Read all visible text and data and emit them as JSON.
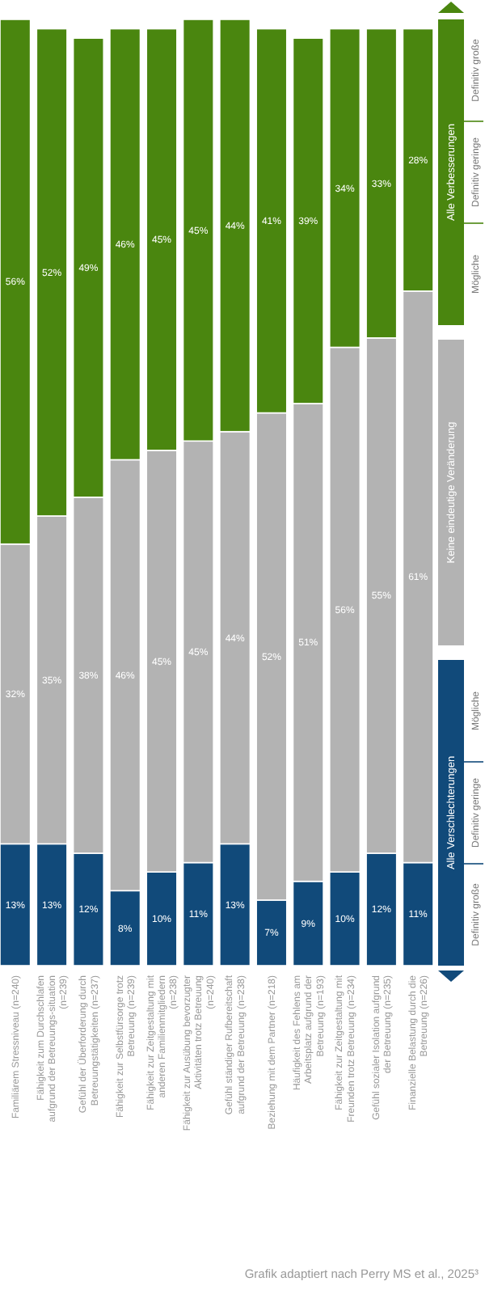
{
  "chart_data": {
    "type": "bar",
    "stacked": true,
    "legend": "right",
    "categories": [
      "Familiärem Stressniveau (n=240)",
      "Fähigkeit zum Durchschlafen aufgrund der Betreuungs-situation (n=239)",
      "Gefühl der Überforderung durch Betreuungstätigkeiten (n=237)",
      "Fähigkeit zur Selbstfürsorge trotz Betreuung (n=239)",
      "Fähigkeit zur Zeitgestaltung mit anderen Familienmitgliedern (n=238)",
      "Fähigkeit zur Ausübung bevorzugter Aktivitäten trotz Betreuung (n=240)",
      "Gefühl ständiger Rufbereitschaft aufgrund der Betreuung (n=238)",
      "Beziehung mit dem Partner (n=218)",
      "Häufigkeit des Fehlens am Arbeitsplatz aufgrund der Betreuung (n=193)",
      "Fähigkeit zur Zeitgestaltung mit Freunden trotz Betreuung (n=234)",
      "Gefühl sozialer Isolation aufgrund der Betreuung (n=235)",
      "Finanzielle Belastung durch die Betreuung (n=226)"
    ],
    "series": [
      {
        "name": "Alle Verschlechterungen",
        "color": "#114a7a",
        "values": [
          13,
          13,
          12,
          8,
          10,
          11,
          13,
          7,
          9,
          10,
          12,
          11
        ],
        "value_labels": [
          "13%",
          "13%",
          "12%",
          "8%",
          "10%",
          "11%",
          "13%",
          "7%",
          "9%",
          "10%",
          "12%",
          "11%"
        ]
      },
      {
        "name": "Keine eindeutige Veränderung",
        "color": "#b3b3b3",
        "values": [
          32,
          35,
          38,
          46,
          45,
          45,
          44,
          52,
          51,
          56,
          55,
          61
        ],
        "value_labels": [
          "32%",
          "35%",
          "38%",
          "46%",
          "45%",
          "45%",
          "44%",
          "52%",
          "51%",
          "56%",
          "55%",
          "61%"
        ]
      },
      {
        "name": "Alle Verbesserungen",
        "color": "#4a860f",
        "values": [
          56,
          52,
          49,
          46,
          45,
          45,
          44,
          41,
          39,
          34,
          33,
          28
        ],
        "value_labels": [
          "56%",
          "52%",
          "49%",
          "46%",
          "45%",
          "45%",
          "44%",
          "41%",
          "39%",
          "34%",
          "33%",
          "28%"
        ]
      }
    ],
    "annotations": [
      "Definitiv große",
      "Definitiv geringe",
      "Mögliche",
      "Mögliche",
      "Definitiv geringe",
      "Definitiv große",
      "Grafik adaptiert nach Perry MS et al., 2025³"
    ]
  }
}
